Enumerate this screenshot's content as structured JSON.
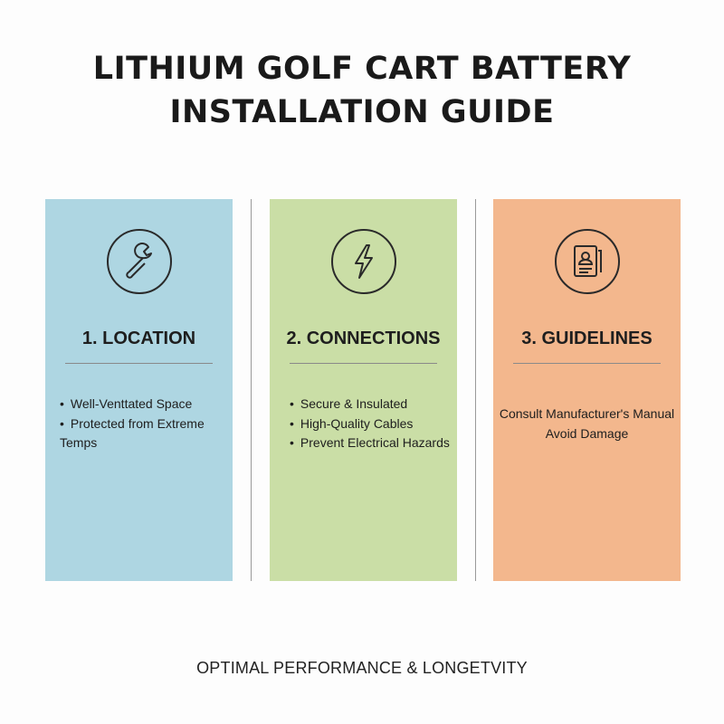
{
  "title": {
    "line1": "LITHIUM GOLF CART BATTERY",
    "line2": "INSTALLATION GUIDE"
  },
  "colors": {
    "location": "#aed6e2",
    "connections": "#cadea6",
    "guidelines": "#f3b78d"
  },
  "panels": [
    {
      "icon": "wrench-icon",
      "heading": "1. LOCATION",
      "items": [
        "Well-Venttated Space",
        "Protected from Extreme Temps"
      ]
    },
    {
      "icon": "lightning-bolt-icon",
      "heading": "2. CONNECTIONS",
      "items": [
        "Secure & Insulated",
        "High-Quality Cables",
        "Prevent Electrical Hazards"
      ]
    },
    {
      "icon": "document-profile-icon",
      "heading": "3. GUIDELINES",
      "lines": [
        "Consult Manufacturer's Manual",
        "Avoid Damage"
      ]
    }
  ],
  "footer": "OPTIMAL PERFORMANCE & LONGETVITY"
}
